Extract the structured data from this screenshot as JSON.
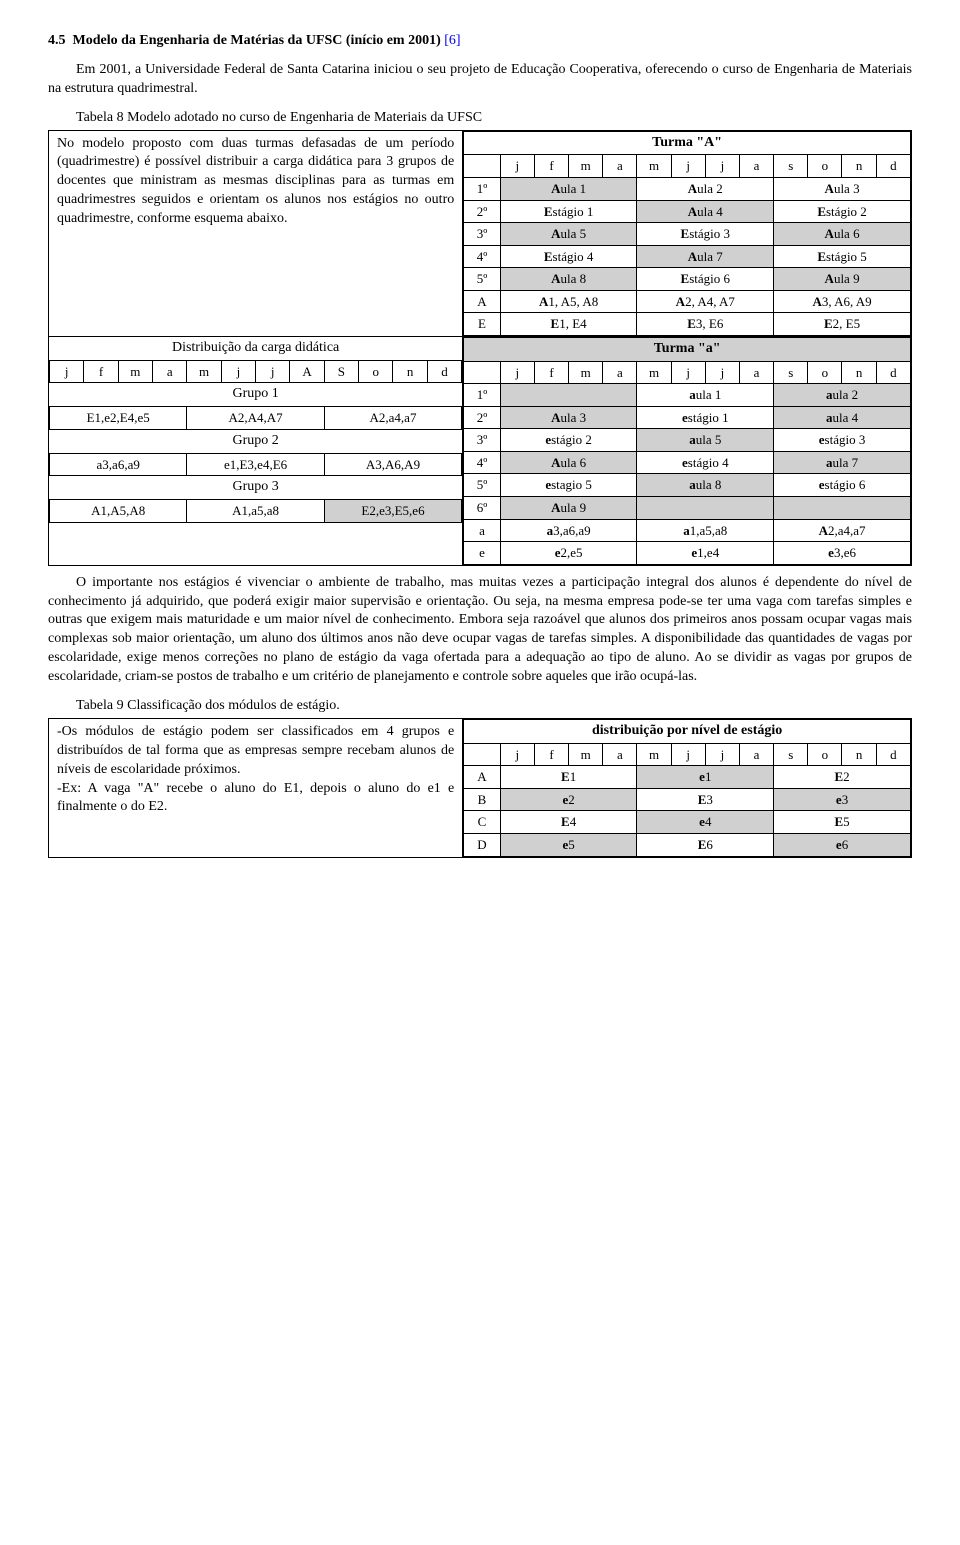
{
  "section": {
    "number": "4.5",
    "title": "Modelo da Engenharia de Matérias da UFSC (início em 2001)",
    "ref": "[6]"
  },
  "intro": "Em 2001, a Universidade Federal de Santa Catarina iniciou o seu projeto de Educação Cooperativa, oferecendo o curso de Engenharia de Materiais na estrutura quadrimestral.",
  "tab8": {
    "caption": "Tabela 8 Modelo adotado no curso de Engenharia de Materiais da UFSC",
    "left_text": "No modelo proposto com duas turmas defasadas de um período (quadrimestre) é possível distribuir a carga didática para 3 grupos de docentes que ministram as mesmas disciplinas para as turmas em quadrimestres seguidos e orientam os alunos nos estágios no outro quadrimestre, conforme esquema abaixo.",
    "dist_title": "Distribuição da carga didática",
    "months_upper": [
      "j",
      "f",
      "m",
      "a",
      "m",
      "j",
      "j",
      "A",
      "S",
      "o",
      "n",
      "d"
    ],
    "g1": "Grupo 1",
    "g1_row": [
      "E1,e2,E4,e5",
      "A2,A4,A7",
      "A2,a4,a7"
    ],
    "g2": "Grupo 2",
    "g2_row": [
      "a3,a6,a9",
      "e1,E3,e4,E6",
      "A3,A6,A9"
    ],
    "g3": "Grupo 3",
    "g3_row": [
      "A1,A5,A8",
      "A1,a5,a8",
      "E2,e3,E5,e6"
    ],
    "turmaA": {
      "title": "Turma \"A\"",
      "months": [
        "j",
        "f",
        "m",
        "a",
        "m",
        "j",
        "j",
        "a",
        "s",
        "o",
        "n",
        "d"
      ],
      "row_lbl": [
        "1º",
        "2º",
        "3º",
        "4º",
        "5º",
        "A",
        "E"
      ],
      "rows": [
        [
          "Aula 1",
          "Aula 2",
          "Aula 3"
        ],
        [
          "Estágio 1",
          "Aula 4",
          "Estágio 2"
        ],
        [
          "Aula 5",
          "Estágio 3",
          "Aula 6"
        ],
        [
          "Estágio 4",
          "Aula 7",
          "Estágio 5"
        ],
        [
          "Aula 8",
          "Estágio 6",
          "Aula 9"
        ],
        [
          "A1, A5, A8",
          "A2, A4, A7",
          "A3, A6, A9"
        ],
        [
          "E1, E4",
          "E3, E6",
          "E2, E5"
        ]
      ],
      "grey": [
        [
          true,
          false,
          false
        ],
        [
          false,
          true,
          false
        ],
        [
          true,
          false,
          true
        ],
        [
          false,
          true,
          false
        ],
        [
          true,
          false,
          true
        ],
        [
          false,
          false,
          false
        ],
        [
          false,
          false,
          false
        ]
      ]
    },
    "turma_a": {
      "title": "Turma \"a\"",
      "months": [
        "j",
        "f",
        "m",
        "a",
        "m",
        "j",
        "j",
        "a",
        "s",
        "o",
        "n",
        "d"
      ],
      "row_lbl": [
        "1º",
        "2º",
        "3º",
        "4º",
        "5º",
        "6º",
        "a",
        "e"
      ],
      "rows": [
        [
          "",
          "aula 1",
          "aula 2"
        ],
        [
          "Aula 3",
          "estágio 1",
          "aula 4"
        ],
        [
          "estágio 2",
          "aula 5",
          "estágio 3"
        ],
        [
          "Aula 6",
          "estágio 4",
          "aula 7"
        ],
        [
          "estagio 5",
          "aula 8",
          "estágio 6"
        ],
        [
          "Aula 9",
          "",
          ""
        ],
        [
          "a3,a6,a9",
          "a1,a5,a8",
          "A2,a4,a7"
        ],
        [
          "e2,e5",
          "e1,e4",
          "e3,e6"
        ]
      ],
      "grey": [
        [
          true,
          false,
          true
        ],
        [
          true,
          false,
          true
        ],
        [
          false,
          true,
          false
        ],
        [
          true,
          false,
          true
        ],
        [
          false,
          true,
          false
        ],
        [
          true,
          true,
          true
        ],
        [
          false,
          false,
          false
        ],
        [
          false,
          false,
          false
        ]
      ]
    }
  },
  "para2": "O importante nos estágios é vivenciar o ambiente de trabalho, mas muitas vezes a participação integral dos alunos é dependente do nível de conhecimento já adquirido, que poderá exigir maior supervisão e orientação. Ou seja, na mesma empresa pode-se ter uma vaga com tarefas simples e outras que exigem mais maturidade e um maior nível de conhecimento. Embora seja razoável que alunos dos primeiros anos possam ocupar vagas mais complexas sob maior orientação, um aluno dos últimos anos não deve ocupar vagas de tarefas simples. A disponibilidade das quantidades de vagas por escolaridade, exige menos correções no plano de estágio da vaga ofertada para a adequação ao tipo de aluno. Ao se dividir as vagas por grupos de escolaridade, criam-se postos de trabalho e um critério de planejamento e controle sobre aqueles que irão ocupá-las.",
  "tab9": {
    "caption": "Tabela 9 Classificação dos módulos de estágio.",
    "left": [
      "-Os módulos de estágio podem ser classificados em 4 grupos e distribuídos de tal forma que as empresas sempre recebam alunos de níveis de escolaridade próximos.",
      "-Ex: A vaga \"A\" recebe o aluno do E1, depois o aluno do e1 e finalmente o do E2."
    ],
    "title": "distribuição por nível de estágio",
    "months": [
      "j",
      "f",
      "m",
      "a",
      "m",
      "j",
      "j",
      "a",
      "s",
      "o",
      "n",
      "d"
    ],
    "row_lbl": [
      "A",
      "B",
      "C",
      "D"
    ],
    "rows": [
      [
        "E1",
        "e1",
        "E2"
      ],
      [
        "e2",
        "E3",
        "e3"
      ],
      [
        "E4",
        "e4",
        "E5"
      ],
      [
        "e5",
        "E6",
        "e6"
      ]
    ],
    "grey": [
      [
        false,
        true,
        false
      ],
      [
        true,
        false,
        true
      ],
      [
        false,
        true,
        false
      ],
      [
        true,
        false,
        true
      ]
    ]
  }
}
